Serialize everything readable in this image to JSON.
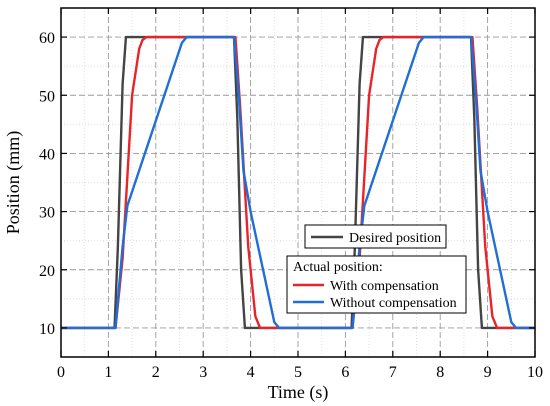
{
  "chart_data": {
    "type": "line",
    "xlabel": "Time (s)",
    "ylabel": "Position (mm)",
    "xlim": [
      0,
      10
    ],
    "ylim": [
      5,
      65
    ],
    "x_ticks": [
      0,
      1,
      2,
      3,
      4,
      5,
      6,
      7,
      8,
      9,
      10
    ],
    "y_ticks": [
      10,
      20,
      30,
      40,
      50,
      60
    ],
    "grid": true,
    "legend": {
      "placement": "lower-right",
      "group_title": "Actual position:"
    },
    "series": [
      {
        "name": "Desired position",
        "color": "#444444",
        "x": [
          0,
          1.13,
          1.2,
          1.3,
          1.37,
          3.65,
          3.72,
          3.8,
          3.88,
          6.13,
          6.2,
          6.3,
          6.37,
          8.65,
          8.72,
          8.8,
          8.88,
          10
        ],
        "y": [
          10,
          10,
          24,
          52,
          60,
          60,
          46,
          20,
          10,
          10,
          24,
          52,
          60,
          60,
          46,
          20,
          10,
          10
        ]
      },
      {
        "name": "With compensation",
        "color": "#e8242b",
        "x": [
          0,
          1.15,
          1.3,
          1.5,
          1.65,
          1.72,
          1.8,
          3.68,
          3.78,
          3.95,
          4.1,
          4.2,
          4.3,
          6.15,
          6.3,
          6.5,
          6.65,
          6.72,
          6.8,
          8.68,
          8.78,
          8.95,
          9.1,
          9.2,
          9.3,
          10
        ],
        "y": [
          10,
          10,
          22,
          50,
          58,
          59.5,
          60,
          60,
          48,
          24,
          12,
          10,
          10,
          10,
          22,
          50,
          58,
          59.5,
          60,
          60,
          48,
          24,
          12,
          10,
          10,
          10
        ]
      },
      {
        "name": "Without compensation",
        "color": "#1f6fd6",
        "x": [
          0,
          1.15,
          1.3,
          1.4,
          2.55,
          2.65,
          2.85,
          3.65,
          3.75,
          3.85,
          4.0,
          4.5,
          4.6,
          4.75,
          6.15,
          6.3,
          6.4,
          7.55,
          7.65,
          7.85,
          8.65,
          8.75,
          8.85,
          9.0,
          9.5,
          9.6,
          9.75,
          10
        ],
        "y": [
          10,
          10,
          24,
          31,
          59,
          60,
          60,
          60,
          50,
          37,
          30,
          11,
          10,
          10,
          10,
          24,
          31,
          59,
          60,
          60,
          60,
          50,
          37,
          30,
          11,
          10,
          10,
          10
        ]
      }
    ]
  }
}
